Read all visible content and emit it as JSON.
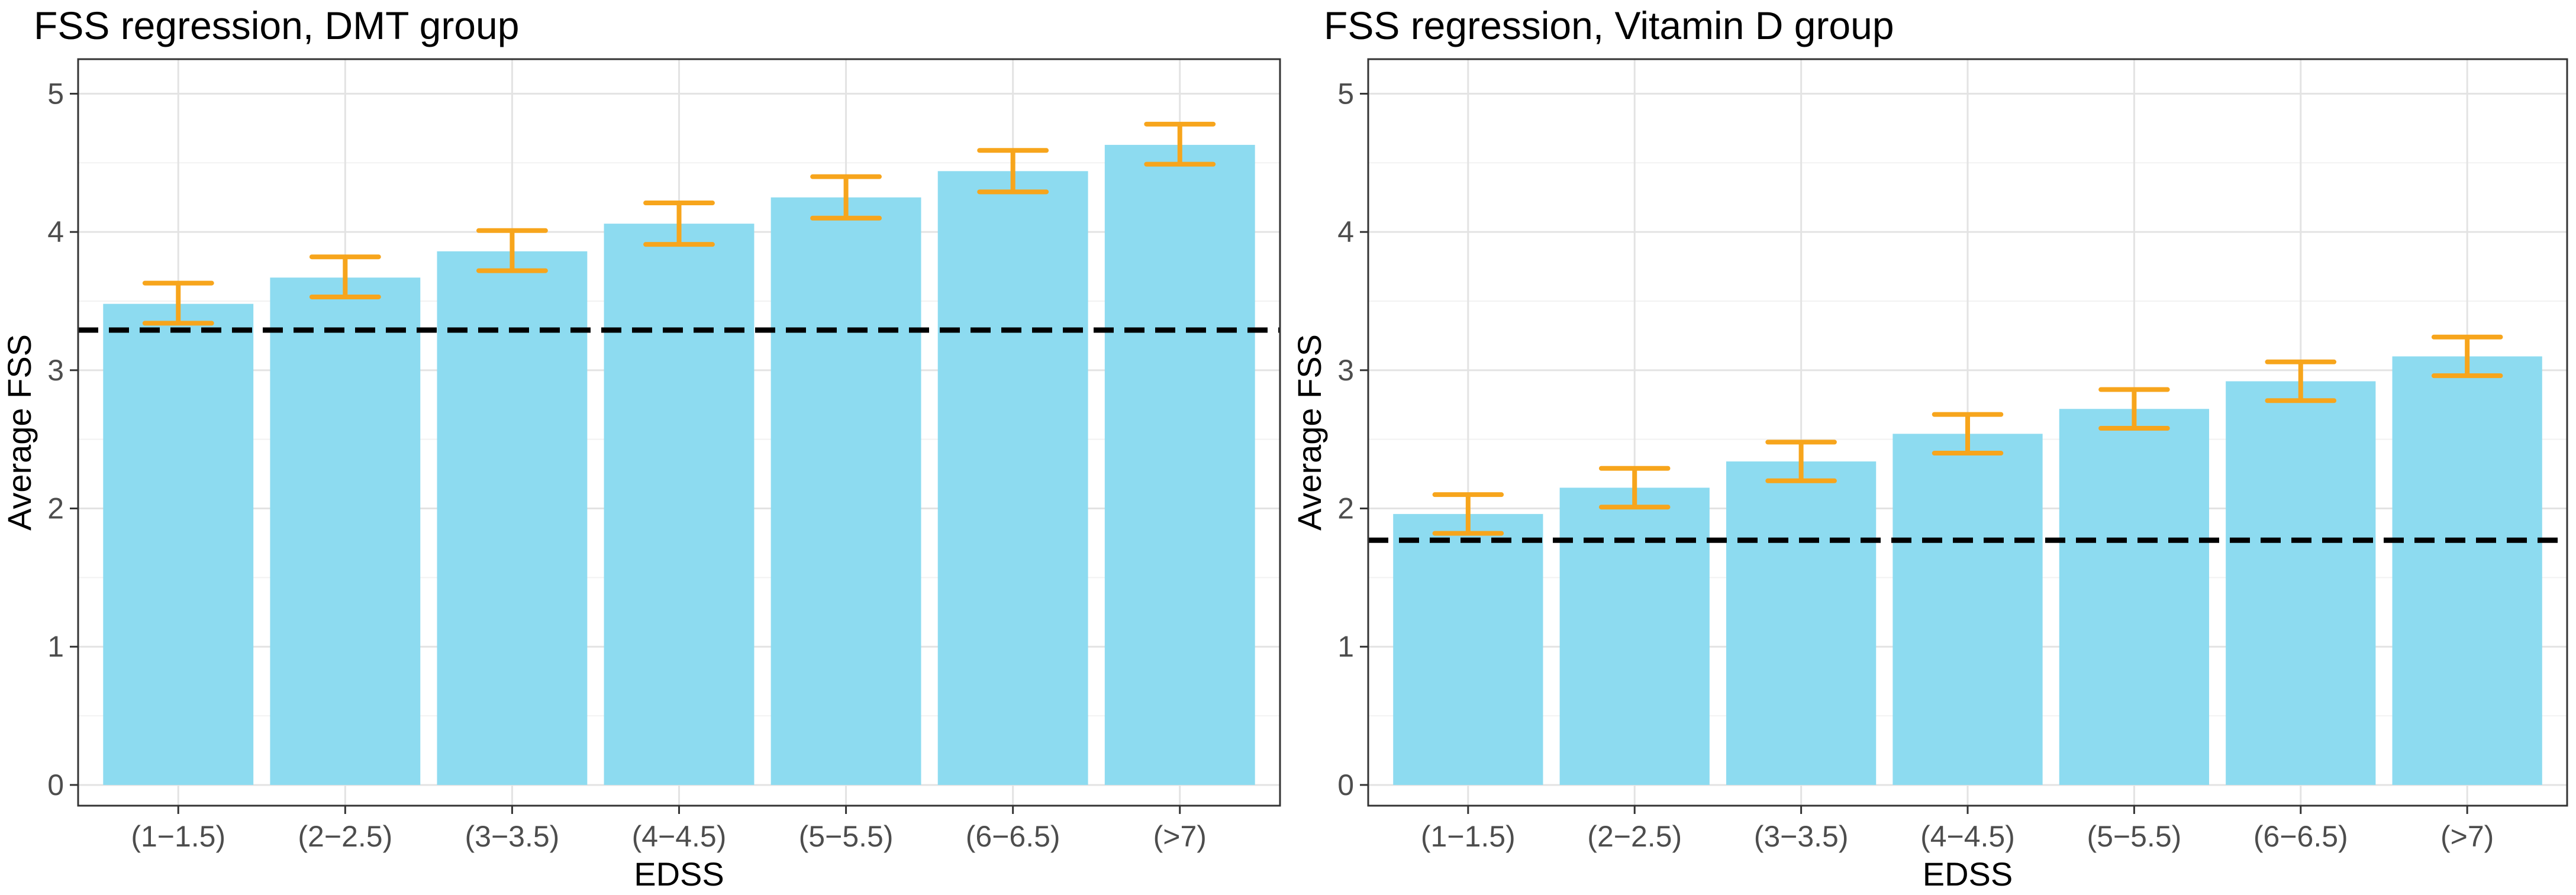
{
  "chart_data": [
    {
      "type": "bar",
      "title": "FSS regression, DMT group",
      "xlabel": "EDSS",
      "ylabel": "Average FSS",
      "categories": [
        "(1−1.5)",
        "(2−2.5)",
        "(3−3.5)",
        "(4−4.5)",
        "(5−5.5)",
        "(6−6.5)",
        "(>7)"
      ],
      "values": [
        3.48,
        3.67,
        3.86,
        4.06,
        4.25,
        4.44,
        4.63
      ],
      "error_low": [
        3.34,
        3.53,
        3.72,
        3.91,
        4.1,
        4.29,
        4.49
      ],
      "error_high": [
        3.63,
        3.82,
        4.01,
        4.21,
        4.4,
        4.59,
        4.78
      ],
      "reference_line": 3.29,
      "ylim": [
        -0.15,
        5.25
      ],
      "yticks": [
        0,
        1,
        2,
        3,
        4,
        5
      ],
      "grid": true,
      "colors": {
        "bar": "#8ddbf0",
        "error": "#f7a51c",
        "reference": "#000000"
      }
    },
    {
      "type": "bar",
      "title": "FSS regression, Vitamin D group",
      "xlabel": "EDSS",
      "ylabel": "Average FSS",
      "categories": [
        "(1−1.5)",
        "(2−2.5)",
        "(3−3.5)",
        "(4−4.5)",
        "(5−5.5)",
        "(6−6.5)",
        "(>7)"
      ],
      "values": [
        1.96,
        2.15,
        2.34,
        2.54,
        2.72,
        2.92,
        3.1
      ],
      "error_low": [
        1.82,
        2.01,
        2.2,
        2.4,
        2.58,
        2.78,
        2.96
      ],
      "error_high": [
        2.1,
        2.29,
        2.48,
        2.68,
        2.86,
        3.06,
        3.24
      ],
      "reference_line": 1.77,
      "ylim": [
        -0.15,
        5.25
      ],
      "yticks": [
        0,
        1,
        2,
        3,
        4,
        5
      ],
      "grid": true,
      "colors": {
        "bar": "#8ddbf0",
        "error": "#f7a51c",
        "reference": "#000000"
      }
    }
  ]
}
